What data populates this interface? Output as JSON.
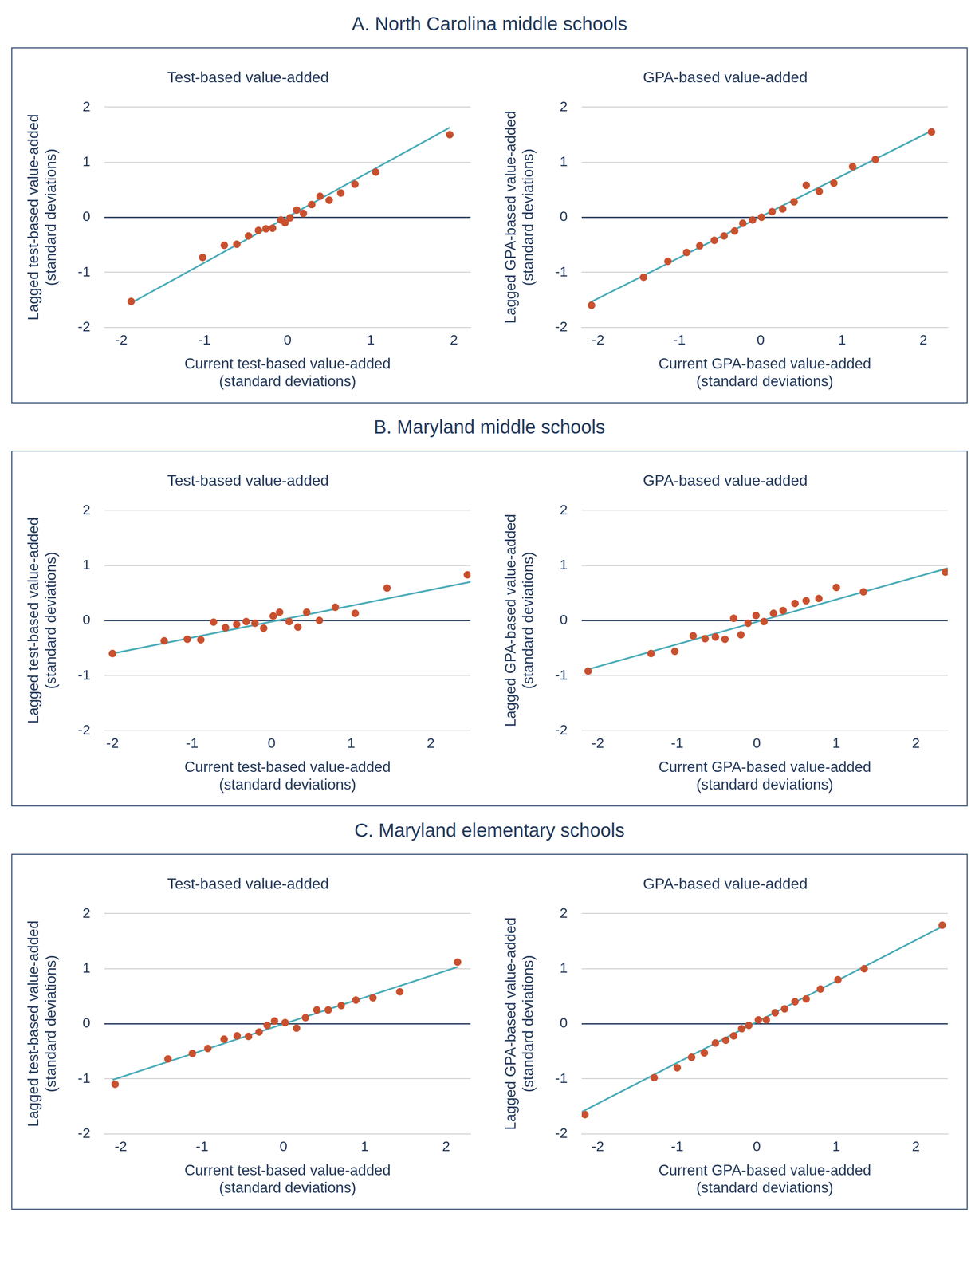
{
  "chart_data": [
    {
      "type": "scatter",
      "panel": "A. North Carolina middle schools",
      "title": "Test-based value-added",
      "xlabel": [
        "Current test-based value-added",
        "(standard deviations)"
      ],
      "ylabel": [
        "Lagged test-based value-added",
        "(standard deviations)"
      ],
      "xlim": [
        -2.2,
        2.2
      ],
      "xticks": [
        -2,
        -1,
        0,
        1,
        2
      ],
      "ylim": [
        -2,
        2
      ],
      "yticks": [
        -2,
        -1,
        0,
        1,
        2
      ],
      "grid": true,
      "series": [
        {
          "type": "scatter",
          "color": "#c9502e",
          "marker": "circle",
          "x": [
            -1.88,
            -1.02,
            -0.76,
            -0.61,
            -0.47,
            -0.35,
            -0.26,
            -0.18,
            -0.08,
            -0.03,
            0.03,
            0.11,
            0.19,
            0.29,
            0.39,
            0.5,
            0.64,
            0.81,
            1.06,
            1.95
          ],
          "values": [
            -1.53,
            -0.73,
            -0.51,
            -0.49,
            -0.34,
            -0.24,
            -0.21,
            -0.2,
            -0.05,
            -0.1,
            -0.01,
            0.13,
            0.07,
            0.23,
            0.38,
            0.31,
            0.44,
            0.6,
            0.82,
            1.5
          ]
        },
        {
          "type": "line",
          "color": "#4aabb8",
          "line_style": "solid",
          "x": [
            -1.87,
            1.95
          ],
          "values": [
            -1.55,
            1.63
          ]
        }
      ]
    },
    {
      "type": "scatter",
      "panel": "A. North Carolina middle schools",
      "title": "GPA-based value-added",
      "xlabel": [
        "Current GPA-based value-added",
        "(standard deviations)"
      ],
      "ylabel": [
        "Lagged GPA-based value-added",
        "(standard deviations)"
      ],
      "xlim": [
        -2.2,
        2.3
      ],
      "xticks": [
        -2,
        -1,
        0,
        1,
        2
      ],
      "ylim": [
        -2,
        2
      ],
      "yticks": [
        -2,
        -1,
        0,
        1,
        2
      ],
      "grid": true,
      "series": [
        {
          "type": "scatter",
          "color": "#c9502e",
          "marker": "circle",
          "x": [
            -2.08,
            -1.44,
            -1.14,
            -0.91,
            -0.75,
            -0.57,
            -0.45,
            -0.32,
            -0.22,
            -0.1,
            0.01,
            0.14,
            0.27,
            0.41,
            0.56,
            0.72,
            0.9,
            1.13,
            1.41,
            2.1
          ],
          "values": [
            -1.6,
            -1.09,
            -0.8,
            -0.64,
            -0.52,
            -0.42,
            -0.34,
            -0.25,
            -0.11,
            -0.05,
            0.0,
            0.1,
            0.15,
            0.28,
            0.58,
            0.47,
            0.62,
            0.92,
            1.05,
            1.55
          ]
        },
        {
          "type": "line",
          "color": "#4aabb8",
          "line_style": "solid",
          "x": [
            -2.1,
            2.1
          ],
          "values": [
            -1.55,
            1.57
          ]
        }
      ]
    },
    {
      "type": "scatter",
      "panel": "B. Maryland middle schools",
      "title": "Test-based value-added",
      "xlabel": [
        "Current test-based value-added",
        "(standard deviations)"
      ],
      "ylabel": [
        "Lagged test-based value-added",
        "(standard deviations)"
      ],
      "xlim": [
        -2.1,
        2.5
      ],
      "xticks": [
        -2,
        -1,
        0,
        1,
        2
      ],
      "ylim": [
        -2,
        2
      ],
      "yticks": [
        -2,
        -1,
        0,
        1,
        2
      ],
      "grid": true,
      "series": [
        {
          "type": "scatter",
          "color": "#c9502e",
          "marker": "circle",
          "x": [
            -2.0,
            -1.35,
            -1.06,
            -0.89,
            -0.73,
            -0.58,
            -0.44,
            -0.32,
            -0.21,
            -0.1,
            0.02,
            0.1,
            0.22,
            0.33,
            0.44,
            0.6,
            0.8,
            1.05,
            1.45,
            2.46
          ],
          "values": [
            -0.6,
            -0.37,
            -0.34,
            -0.35,
            -0.03,
            -0.13,
            -0.07,
            -0.02,
            -0.05,
            -0.14,
            0.08,
            0.15,
            -0.02,
            -0.12,
            0.15,
            0.0,
            0.24,
            0.13,
            0.59,
            0.83
          ]
        },
        {
          "type": "line",
          "color": "#4aabb8",
          "line_style": "solid",
          "x": [
            -2.0,
            2.5
          ],
          "values": [
            -0.6,
            0.7
          ]
        }
      ]
    },
    {
      "type": "scatter",
      "panel": "B. Maryland middle schools",
      "title": "GPA-based value-added",
      "xlabel": [
        "Current GPA-based value-added",
        "(standard deviations)"
      ],
      "ylabel": [
        "Lagged GPA-based value-added",
        "(standard deviations)"
      ],
      "xlim": [
        -2.2,
        2.4
      ],
      "xticks": [
        -2,
        -1,
        0,
        1,
        2
      ],
      "ylim": [
        -2,
        2
      ],
      "yticks": [
        -2,
        -1,
        0,
        1,
        2
      ],
      "grid": true,
      "series": [
        {
          "type": "scatter",
          "color": "#c9502e",
          "marker": "circle",
          "x": [
            -2.12,
            -1.33,
            -1.03,
            -0.8,
            -0.65,
            -0.52,
            -0.4,
            -0.29,
            -0.2,
            -0.11,
            -0.01,
            0.09,
            0.21,
            0.33,
            0.48,
            0.62,
            0.78,
            1.0,
            1.34,
            2.37
          ],
          "values": [
            -0.92,
            -0.6,
            -0.56,
            -0.28,
            -0.33,
            -0.3,
            -0.34,
            0.04,
            -0.26,
            -0.05,
            0.09,
            -0.02,
            0.13,
            0.18,
            0.31,
            0.36,
            0.4,
            0.6,
            0.52,
            0.88
          ]
        },
        {
          "type": "line",
          "color": "#4aabb8",
          "line_style": "solid",
          "x": [
            -2.15,
            2.4
          ],
          "values": [
            -0.9,
            0.95
          ]
        }
      ]
    },
    {
      "type": "scatter",
      "panel": "C. Maryland elementary schools",
      "title": "Test-based value-added",
      "xlabel": [
        "Current test-based value-added",
        "(standard deviations)"
      ],
      "ylabel": [
        "Lagged test-based value-added",
        "(standard deviations)"
      ],
      "xlim": [
        -2.2,
        2.3
      ],
      "xticks": [
        -2,
        -1,
        0,
        1,
        2
      ],
      "ylim": [
        -2,
        2
      ],
      "yticks": [
        -2,
        -1,
        0,
        1,
        2
      ],
      "grid": true,
      "series": [
        {
          "type": "scatter",
          "color": "#c9502e",
          "marker": "circle",
          "x": [
            -2.07,
            -1.42,
            -1.12,
            -0.93,
            -0.73,
            -0.57,
            -0.43,
            -0.3,
            -0.2,
            -0.11,
            0.02,
            0.16,
            0.27,
            0.41,
            0.55,
            0.71,
            0.89,
            1.1,
            1.43,
            2.14
          ],
          "values": [
            -1.1,
            -0.64,
            -0.54,
            -0.45,
            -0.28,
            -0.22,
            -0.23,
            -0.15,
            -0.03,
            0.05,
            0.02,
            -0.08,
            0.11,
            0.25,
            0.25,
            0.33,
            0.43,
            0.47,
            0.58,
            1.12
          ]
        },
        {
          "type": "line",
          "color": "#4aabb8",
          "line_style": "solid",
          "x": [
            -2.1,
            2.14
          ],
          "values": [
            -1.02,
            1.03
          ]
        }
      ]
    },
    {
      "type": "scatter",
      "panel": "C. Maryland elementary schools",
      "title": "GPA-based value-added",
      "xlabel": [
        "Current GPA-based value-added",
        "(standard deviations)"
      ],
      "ylabel": [
        "Lagged GPA-based value-added",
        "(standard deviations)"
      ],
      "xlim": [
        -2.2,
        2.4
      ],
      "xticks": [
        -2,
        -1,
        0,
        1,
        2
      ],
      "ylim": [
        -2,
        2
      ],
      "yticks": [
        -2,
        -1,
        0,
        1,
        2
      ],
      "grid": true,
      "series": [
        {
          "type": "scatter",
          "color": "#c9502e",
          "marker": "circle",
          "x": [
            -2.16,
            -1.29,
            -1.0,
            -0.82,
            -0.66,
            -0.52,
            -0.39,
            -0.29,
            -0.19,
            -0.1,
            0.02,
            0.12,
            0.23,
            0.35,
            0.48,
            0.62,
            0.8,
            1.02,
            1.35,
            2.33
          ],
          "values": [
            -1.65,
            -0.98,
            -0.8,
            -0.61,
            -0.53,
            -0.35,
            -0.3,
            -0.22,
            -0.09,
            -0.03,
            0.07,
            0.07,
            0.2,
            0.27,
            0.4,
            0.45,
            0.63,
            0.8,
            1.0,
            1.79
          ]
        },
        {
          "type": "line",
          "color": "#4aabb8",
          "line_style": "solid",
          "x": [
            -2.2,
            2.35
          ],
          "values": [
            -1.6,
            1.78
          ]
        }
      ]
    }
  ]
}
